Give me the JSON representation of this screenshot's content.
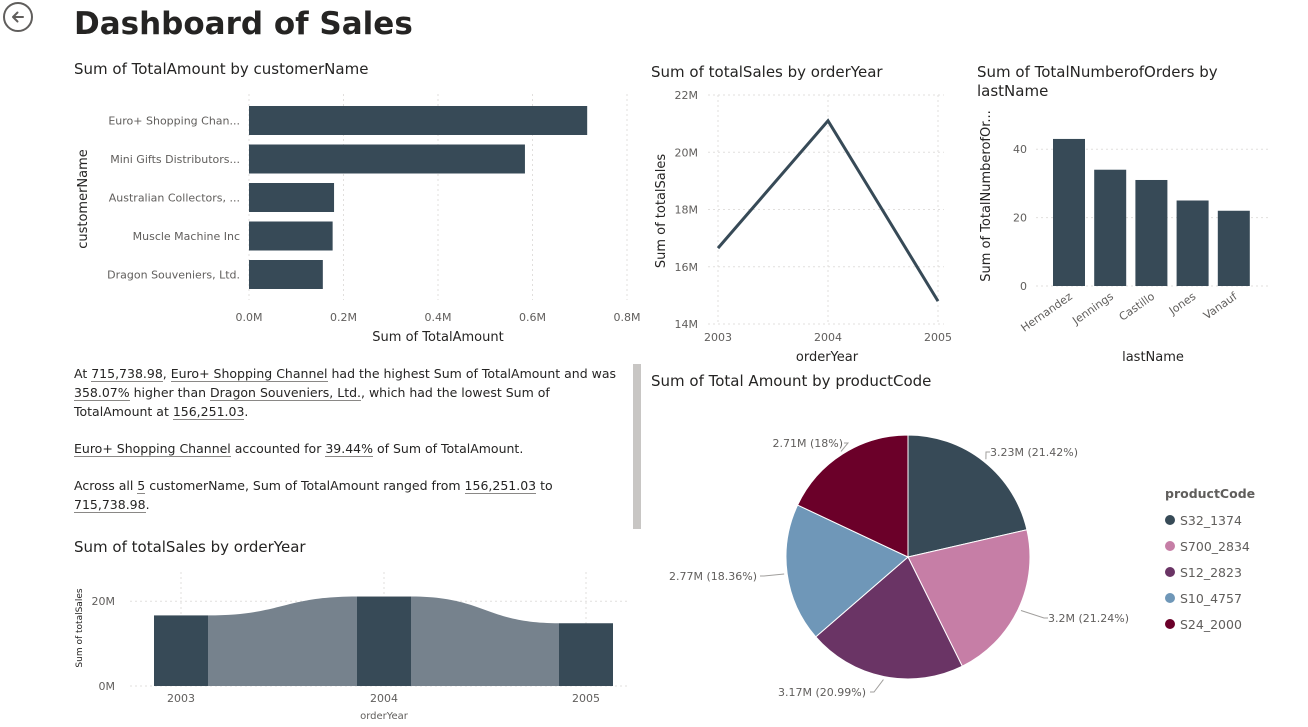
{
  "page": {
    "title": "Dashboard of Sales"
  },
  "icons": {
    "back": "back-arrow-icon"
  },
  "colors": {
    "primary": "#374a57",
    "area_light": "#76828d",
    "pie": [
      "#374a57",
      "#c67ea6",
      "#6a3465",
      "#6f97b8",
      "#6b0029"
    ]
  },
  "chart_data": [
    {
      "id": "customer_bar",
      "type": "bar",
      "orientation": "horizontal",
      "title": "Sum of TotalAmount by customerName",
      "xlabel": "Sum of TotalAmount",
      "ylabel": "customerName",
      "categories": [
        "Euro+ Shopping Chan...",
        "Mini Gifts Distributors...",
        "Australian Collectors, ...",
        "Muscle Machine Inc",
        "Dragon Souveniers, Ltd."
      ],
      "values": [
        715738.98,
        584000,
        180000,
        177000,
        156251.03
      ],
      "xlim": [
        0,
        800000
      ],
      "xticks": [
        0,
        200000,
        400000,
        600000,
        800000
      ],
      "xtick_labels": [
        "0.0M",
        "0.2M",
        "0.4M",
        "0.6M",
        "0.8M"
      ],
      "grid": true
    },
    {
      "id": "sales_line",
      "type": "line",
      "title": "Sum of totalSales by orderYear",
      "xlabel": "orderYear",
      "ylabel": "Sum of totalSales",
      "x": [
        "2003",
        "2004",
        "2005"
      ],
      "values": [
        16650000,
        21100000,
        14800000
      ],
      "ylim": [
        14000000,
        22000000
      ],
      "yticks": [
        14000000,
        16000000,
        18000000,
        20000000,
        22000000
      ],
      "ytick_labels": [
        "14M",
        "16M",
        "18M",
        "20M",
        "22M"
      ],
      "grid": true
    },
    {
      "id": "orders_bar",
      "type": "bar",
      "title": "Sum of TotalNumberofOrders by lastName",
      "xlabel": "lastName",
      "ylabel": "Sum of TotalNumberofOr...",
      "categories": [
        "Hernandez",
        "Jennings",
        "Castillo",
        "Jones",
        "Vanauf"
      ],
      "values": [
        43,
        34,
        31,
        25,
        22
      ],
      "ylim": [
        0,
        50
      ],
      "yticks": [
        0,
        20,
        40
      ],
      "ytick_labels": [
        "0",
        "20",
        "40"
      ],
      "grid": true
    },
    {
      "id": "product_pie",
      "type": "pie",
      "title": "Sum of Total Amount by productCode",
      "legend_title": "productCode",
      "legend_position": "right",
      "labels": [
        "S32_1374",
        "S700_2834",
        "S12_2823",
        "S10_4757",
        "S24_2000"
      ],
      "values": [
        21.42,
        21.24,
        20.99,
        18.36,
        18.0
      ],
      "data_labels": [
        "3.23M (21.42%)",
        "3.2M (21.24%)",
        "3.17M (20.99%)",
        "2.77M (18.36%)",
        "2.71M (18%)"
      ]
    },
    {
      "id": "sales_ribbon",
      "type": "area",
      "title": "Sum of totalSales by orderYear",
      "xlabel": "orderYear",
      "ylabel": "Sum of totalSales",
      "x": [
        "2003",
        "2004",
        "2005"
      ],
      "values": [
        16650000,
        21100000,
        14800000
      ],
      "ylim": [
        0,
        25000000
      ],
      "yticks": [
        0,
        20000000
      ],
      "ytick_labels": [
        "0M",
        "20M"
      ]
    }
  ],
  "narrative": {
    "p1": {
      "t1": "At ",
      "v1": "715,738.98",
      "t2": ", ",
      "v2": "Euro+ Shopping Channel",
      "t3": " had the highest Sum of TotalAmount and was ",
      "v3": "358.07%",
      "t4": " higher than ",
      "v4": "Dragon Souveniers, Ltd.",
      "t5": ", which had the lowest Sum of TotalAmount at ",
      "v5": "156,251.03",
      "t6": "."
    },
    "p2": {
      "v1": "Euro+ Shopping Channel",
      "t1": " accounted for ",
      "v2": "39.44%",
      "t2": " of Sum of TotalAmount."
    },
    "p3": {
      "t1": "Across all ",
      "v1": "5",
      "t2": " customerName, Sum of TotalAmount ranged from ",
      "v2": "156,251.03",
      "t3": " to ",
      "v3": "715,738.98",
      "t4": "."
    }
  }
}
